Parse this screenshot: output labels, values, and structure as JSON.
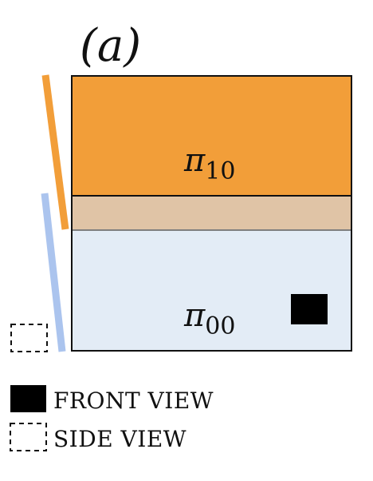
{
  "panel_label": "(a)",
  "regions": {
    "top": {
      "symbol": "π",
      "subscript": "10",
      "color": "#F29E39"
    },
    "overlap": {
      "color": "#E0C4A6"
    },
    "bottom": {
      "symbol": "π",
      "subscript": "00",
      "color": "#E3ECF6"
    }
  },
  "side_bars": {
    "orange_color": "#F29E39",
    "blue_color": "#ABC4EE"
  },
  "legend": {
    "front_view": "FRONT VIEW",
    "side_view": "SIDE VIEW"
  }
}
